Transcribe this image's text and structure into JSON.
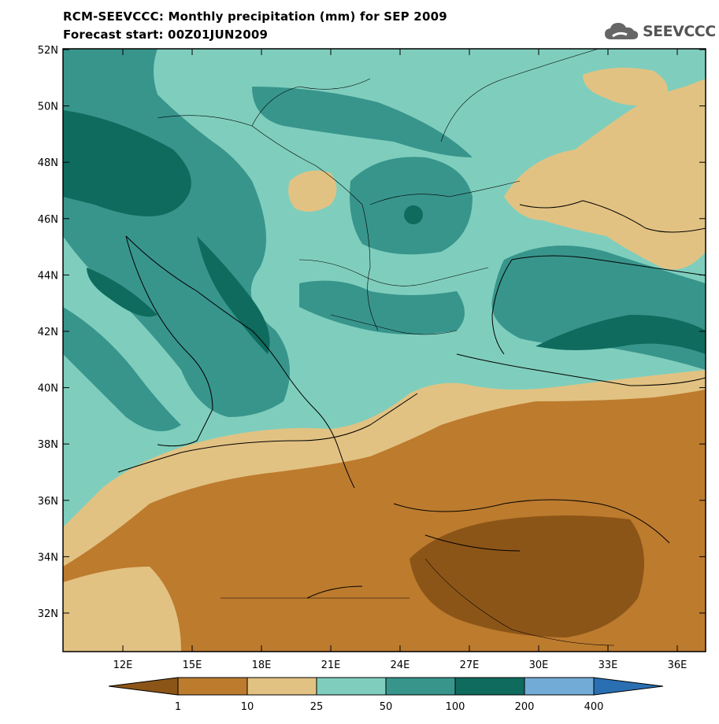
{
  "title": "RCM-SEEVCCC: Monthly precipitation (mm) for SEP 2009",
  "subtitle": "Forecast start: 00Z01JUN2009",
  "logo": {
    "text": "SEEVCCC",
    "icon": "cloud-icon"
  },
  "axes": {
    "lat_labels": [
      "52N",
      "50N",
      "48N",
      "46N",
      "44N",
      "42N",
      "40N",
      "38N",
      "36N",
      "34N",
      "32N"
    ],
    "lon_labels": [
      "12E",
      "15E",
      "18E",
      "21E",
      "24E",
      "27E",
      "30E",
      "33E",
      "36E"
    ]
  },
  "colorbar": {
    "labels": [
      "1",
      "10",
      "25",
      "50",
      "100",
      "200",
      "400"
    ],
    "colors": [
      "#8c5518",
      "#bd7b2e",
      "#e2c282",
      "#7fcebd",
      "#38958c",
      "#0e6b5d",
      "#72acd6",
      "#2a6fb2"
    ]
  }
}
